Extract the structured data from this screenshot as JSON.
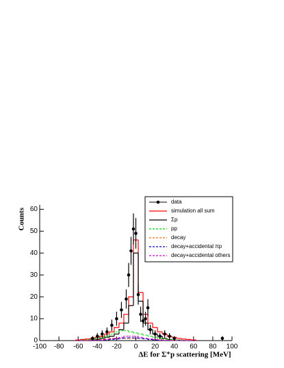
{
  "chart_data": {
    "type": "histogram",
    "xlabel": "ΔE for Σ⁺p scattering [MeV]",
    "ylabel": "Counts",
    "xlim": [
      -100,
      100
    ],
    "ylim": [
      0,
      62
    ],
    "xticks": [
      -100,
      -80,
      -60,
      -40,
      -20,
      0,
      20,
      40,
      60,
      80,
      100
    ],
    "yticks": [
      0,
      10,
      20,
      30,
      40,
      50,
      60
    ],
    "bins": [
      -62.5,
      -57.5,
      -52.5,
      -47.5,
      -42.5,
      -37.5,
      -32.5,
      -27.5,
      -22.5,
      -17.5,
      -12.5,
      -7.5,
      -2.5,
      2.5,
      7.5,
      12.5,
      17.5,
      22.5,
      27.5,
      32.5,
      37.5,
      42.5,
      47.5,
      52.5,
      57.5,
      62.5
    ],
    "series": [
      {
        "name": "simulation all sum",
        "color": "#ff0000",
        "dash": false,
        "values": [
          0.3,
          0.5,
          0.7,
          1,
          1.5,
          2,
          3,
          4,
          6,
          8,
          12,
          20,
          46,
          22,
          12,
          8,
          6,
          4,
          3,
          2,
          1.5,
          1,
          0.7,
          0.5,
          0.3
        ]
      },
      {
        "name": "Σp",
        "color": "#000000",
        "dash": false,
        "values": [
          0,
          0,
          0,
          0.2,
          0.5,
          1,
          1.5,
          2,
          3,
          5,
          8,
          16,
          40,
          18,
          8,
          5,
          3,
          2,
          1,
          0.5,
          0.3,
          0.2,
          0,
          0,
          0
        ]
      },
      {
        "name": "pp",
        "color": "#00cc00",
        "dash": true,
        "values": [
          0,
          0.2,
          0.4,
          0.6,
          1,
          1.5,
          2,
          3,
          4,
          4.5,
          4.5,
          4,
          3.5,
          3,
          2.5,
          2,
          1.5,
          1,
          0.8,
          0.5,
          0.3,
          0.2,
          0.1,
          0,
          0
        ]
      },
      {
        "name": "decay",
        "color": "#ff6600",
        "dash": true,
        "values": [
          0,
          0,
          0.1,
          0.2,
          0.3,
          0.5,
          0.7,
          1,
          1,
          1,
          1,
          1,
          1,
          1,
          0.8,
          0.6,
          0.5,
          0.4,
          0.3,
          0.2,
          0.1,
          0,
          0,
          0,
          0
        ]
      },
      {
        "name": "decay+accidental πp",
        "color": "#0000cc",
        "dash": true,
        "values": [
          0,
          0,
          0,
          0.1,
          0.1,
          0.2,
          0.3,
          0.5,
          0.7,
          1,
          1.2,
          1.3,
          1.2,
          1,
          0.8,
          0.5,
          0.3,
          0.2,
          0.1,
          0.1,
          0,
          0,
          0,
          0,
          0
        ]
      },
      {
        "name": "decay+accidental others",
        "color": "#cc00cc",
        "dash": true,
        "values": [
          0,
          0,
          0,
          0.1,
          0.2,
          0.3,
          0.5,
          0.8,
          1,
          1.5,
          2,
          2,
          2,
          1.5,
          1,
          0.8,
          0.5,
          0.3,
          0.2,
          0.1,
          0,
          0,
          0,
          0,
          0
        ]
      }
    ],
    "data_points": {
      "name": "data",
      "color": "#000000",
      "x": [
        -45,
        -40,
        -35,
        -30,
        -25,
        -20,
        -15,
        -10,
        -7.5,
        -5,
        -2.5,
        0,
        2.5,
        5,
        7.5,
        10,
        12.5,
        15,
        20,
        25,
        30,
        35,
        40,
        90
      ],
      "values": [
        1,
        2,
        3,
        4,
        7,
        10,
        14,
        19,
        30,
        41,
        51,
        49,
        21,
        12,
        9,
        10,
        15,
        5,
        3,
        2,
        3,
        2,
        1,
        1
      ],
      "errors": [
        1,
        1.4,
        1.7,
        2,
        2.6,
        3.2,
        3.7,
        4.4,
        5.5,
        6.4,
        7.1,
        7,
        4.6,
        3.5,
        3,
        3.2,
        3.9,
        2.2,
        1.7,
        1.4,
        1.7,
        1.4,
        1,
        1
      ]
    }
  }
}
